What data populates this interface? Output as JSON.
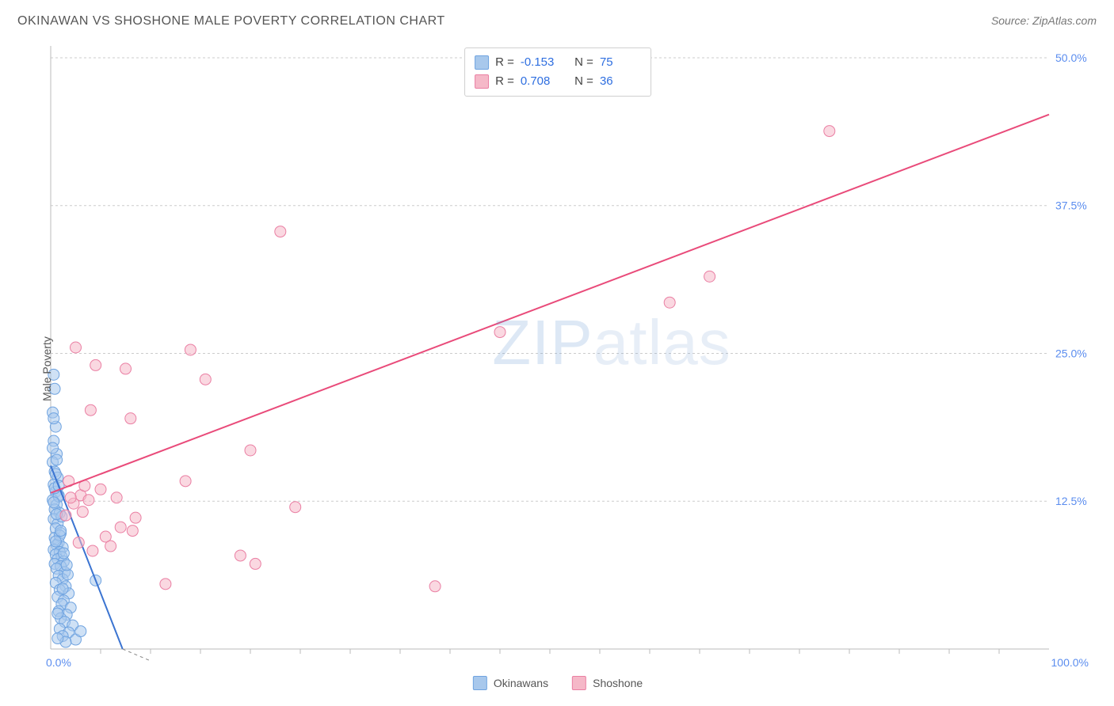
{
  "title": "OKINAWAN VS SHOSHONE MALE POVERTY CORRELATION CHART",
  "source": "Source: ZipAtlas.com",
  "y_axis_label": "Male Poverty",
  "watermark_prefix": "ZIP",
  "watermark_suffix": "atlas",
  "chart": {
    "type": "scatter",
    "background_color": "#ffffff",
    "grid_color": "#cccccc",
    "axis_color": "#bbbbbb",
    "label_color": "#5b8def",
    "xlim": [
      0,
      100
    ],
    "ylim": [
      0,
      51
    ],
    "y_ticks": [
      {
        "v": 12.5,
        "label": "12.5%"
      },
      {
        "v": 25.0,
        "label": "25.0%"
      },
      {
        "v": 37.5,
        "label": "37.5%"
      },
      {
        "v": 50.0,
        "label": "50.0%"
      }
    ],
    "x_ticks_minor_step": 5,
    "x_min_label": "0.0%",
    "x_max_label": "100.0%",
    "marker_radius": 7,
    "series": [
      {
        "name": "Okinawans",
        "fill": "#a8c8ec",
        "stroke": "#6fa3e0",
        "fill_opacity": 0.55,
        "trend_color": "#3b74d1",
        "trend": {
          "x1": 0,
          "y1": 15.5,
          "x2": 7.2,
          "y2": 0
        },
        "trend_dash_ext": {
          "x1": 7.2,
          "y1": 0,
          "x2": 10,
          "y2": -6
        },
        "points": [
          [
            0.3,
            23.2
          ],
          [
            0.4,
            22.0
          ],
          [
            0.2,
            20.0
          ],
          [
            0.5,
            18.8
          ],
          [
            0.3,
            17.6
          ],
          [
            0.6,
            16.5
          ],
          [
            0.2,
            15.8
          ],
          [
            0.4,
            15.0
          ],
          [
            0.7,
            14.5
          ],
          [
            0.3,
            13.9
          ],
          [
            0.5,
            13.3
          ],
          [
            0.8,
            13.0
          ],
          [
            0.2,
            12.6
          ],
          [
            0.6,
            12.2
          ],
          [
            0.4,
            11.8
          ],
          [
            0.9,
            11.5
          ],
          [
            0.3,
            11.0
          ],
          [
            0.7,
            10.6
          ],
          [
            0.5,
            10.2
          ],
          [
            1.0,
            9.8
          ],
          [
            0.4,
            9.4
          ],
          [
            0.8,
            9.0
          ],
          [
            0.6,
            8.8
          ],
          [
            1.2,
            8.6
          ],
          [
            0.3,
            8.4
          ],
          [
            0.9,
            8.2
          ],
          [
            0.5,
            8.0
          ],
          [
            1.1,
            7.8
          ],
          [
            0.7,
            7.6
          ],
          [
            1.3,
            7.4
          ],
          [
            0.4,
            7.2
          ],
          [
            1.0,
            7.0
          ],
          [
            0.6,
            6.8
          ],
          [
            1.4,
            6.5
          ],
          [
            0.8,
            6.2
          ],
          [
            1.2,
            5.9
          ],
          [
            0.5,
            5.6
          ],
          [
            1.5,
            5.3
          ],
          [
            0.9,
            5.0
          ],
          [
            1.8,
            4.7
          ],
          [
            0.7,
            4.4
          ],
          [
            1.3,
            4.1
          ],
          [
            1.1,
            3.8
          ],
          [
            2.0,
            3.5
          ],
          [
            0.8,
            3.2
          ],
          [
            1.6,
            2.9
          ],
          [
            1.0,
            2.6
          ],
          [
            1.4,
            2.3
          ],
          [
            2.2,
            2.0
          ],
          [
            0.9,
            1.7
          ],
          [
            1.8,
            1.4
          ],
          [
            1.2,
            1.1
          ],
          [
            2.5,
            0.8
          ],
          [
            1.5,
            0.6
          ],
          [
            0.7,
            0.9
          ],
          [
            3.0,
            1.5
          ],
          [
            4.5,
            5.8
          ],
          [
            0.6,
            16.0
          ],
          [
            0.3,
            19.5
          ],
          [
            1.1,
            11.2
          ],
          [
            0.8,
            12.9
          ],
          [
            1.7,
            6.3
          ],
          [
            0.4,
            13.6
          ],
          [
            0.9,
            9.6
          ],
          [
            1.3,
            8.1
          ],
          [
            0.5,
            14.8
          ],
          [
            0.2,
            17.0
          ],
          [
            1.0,
            10.0
          ],
          [
            0.6,
            11.4
          ],
          [
            1.6,
            7.1
          ],
          [
            0.3,
            12.4
          ],
          [
            0.8,
            13.8
          ],
          [
            0.5,
            9.1
          ],
          [
            1.2,
            5.1
          ],
          [
            0.7,
            3.0
          ]
        ]
      },
      {
        "name": "Shoshone",
        "fill": "#f5b8c8",
        "stroke": "#ea7fa3",
        "fill_opacity": 0.55,
        "trend_color": "#e94b7a",
        "trend": {
          "x1": 0,
          "y1": 13.2,
          "x2": 100,
          "y2": 45.2
        },
        "points": [
          [
            78.0,
            43.8
          ],
          [
            66.0,
            31.5
          ],
          [
            62.0,
            29.3
          ],
          [
            45.0,
            26.8
          ],
          [
            23.0,
            35.3
          ],
          [
            2.5,
            25.5
          ],
          [
            4.5,
            24.0
          ],
          [
            14.0,
            25.3
          ],
          [
            7.5,
            23.7
          ],
          [
            15.5,
            22.8
          ],
          [
            4.0,
            20.2
          ],
          [
            8.0,
            19.5
          ],
          [
            24.5,
            12.0
          ],
          [
            20.0,
            16.8
          ],
          [
            13.5,
            14.2
          ],
          [
            3.0,
            13.0
          ],
          [
            5.0,
            13.5
          ],
          [
            2.3,
            12.3
          ],
          [
            3.8,
            12.6
          ],
          [
            1.5,
            11.3
          ],
          [
            5.5,
            9.5
          ],
          [
            7.0,
            10.3
          ],
          [
            8.5,
            11.1
          ],
          [
            6.0,
            8.7
          ],
          [
            8.2,
            10.0
          ],
          [
            20.5,
            7.2
          ],
          [
            19.0,
            7.9
          ],
          [
            11.5,
            5.5
          ],
          [
            2.8,
            9.0
          ],
          [
            4.2,
            8.3
          ],
          [
            3.4,
            13.8
          ],
          [
            38.5,
            5.3
          ],
          [
            1.8,
            14.2
          ],
          [
            2.0,
            12.8
          ],
          [
            3.2,
            11.6
          ],
          [
            6.6,
            12.8
          ]
        ]
      }
    ]
  },
  "stats": [
    {
      "swatch_fill": "#a8c8ec",
      "swatch_stroke": "#6fa3e0",
      "r": "-0.153",
      "n": "75"
    },
    {
      "swatch_fill": "#f5b8c8",
      "swatch_stroke": "#ea7fa3",
      "r": "0.708",
      "n": "36"
    }
  ],
  "legend": [
    {
      "swatch_fill": "#a8c8ec",
      "swatch_stroke": "#6fa3e0",
      "label": "Okinawans"
    },
    {
      "swatch_fill": "#f5b8c8",
      "swatch_stroke": "#ea7fa3",
      "label": "Shoshone"
    }
  ]
}
